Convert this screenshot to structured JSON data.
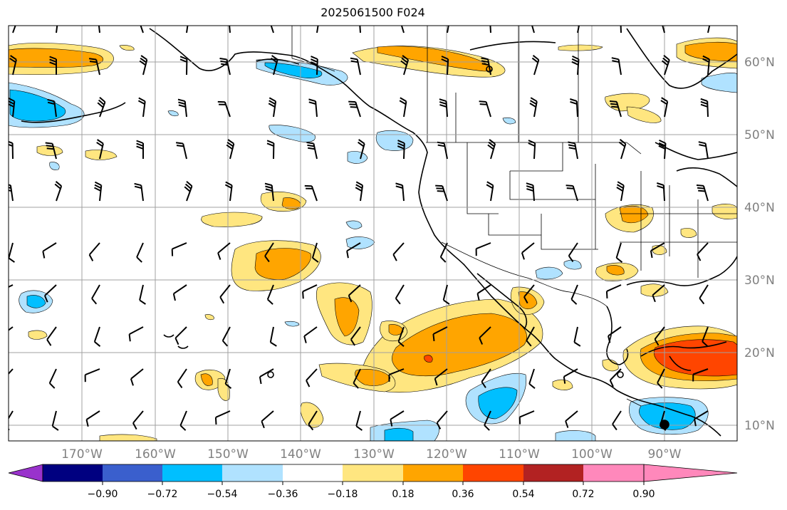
{
  "title": "2025061500 F024",
  "map": {
    "lon_labels": [
      "170°W",
      "160°W",
      "150°W",
      "140°W",
      "130°W",
      "120°W",
      "110°W",
      "100°W",
      "90°W"
    ],
    "lat_labels": [
      "60°N",
      "50°N",
      "40°N",
      "30°N",
      "20°N",
      "10°N"
    ],
    "lon_range": [
      -180,
      -80
    ],
    "lat_range": [
      8,
      65
    ]
  },
  "colorbar": {
    "tick_labels": [
      "−0.90",
      "−0.72",
      "−0.54",
      "−0.36",
      "−0.18",
      "0.18",
      "0.36",
      "0.54",
      "0.72",
      "0.90"
    ],
    "colors": [
      "#9932cc",
      "#000080",
      "#3a5fcd",
      "#00bfff",
      "#b0e2ff",
      "#ffffff",
      "#ffe680",
      "#ffa500",
      "#ff4500",
      "#b22222",
      "#ff88bb"
    ],
    "extend": "both"
  },
  "colors": {
    "land_outline": "#000000",
    "grid": "#a0a0a0",
    "label_gray": "#808080"
  }
}
